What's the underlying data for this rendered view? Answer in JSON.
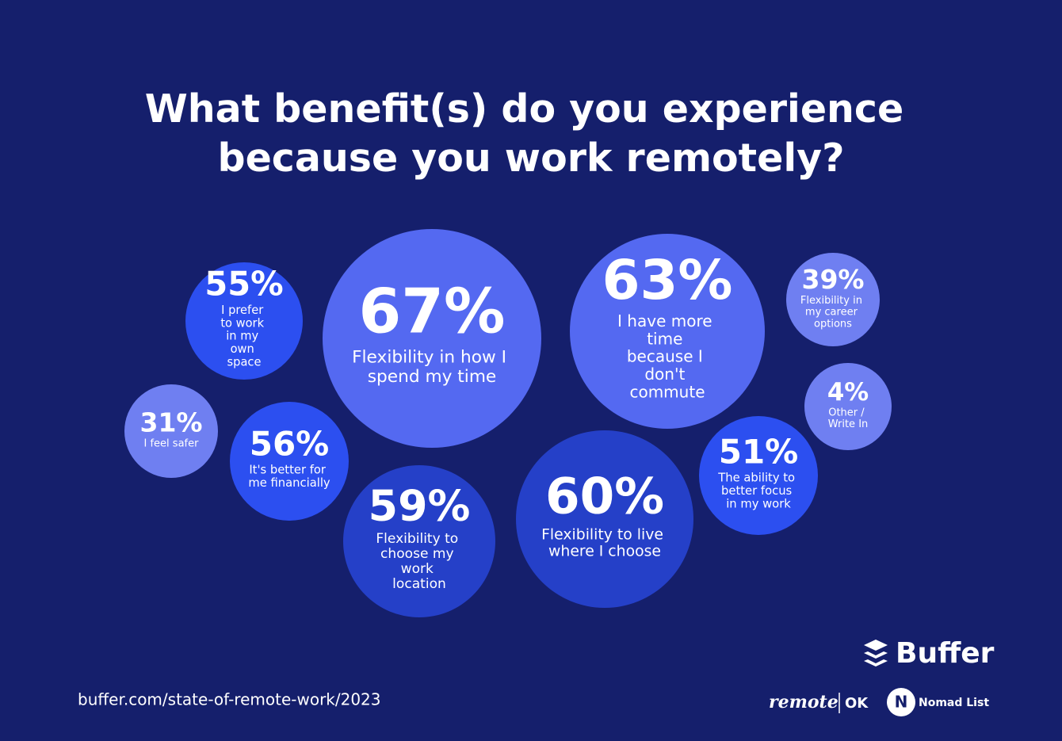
{
  "chart_data": {
    "type": "bubble",
    "title": "What benefit(s) do you experience because you work remotely?",
    "categories": [
      "I prefer to work in my own space",
      "Flexibility in how I spend my time",
      "I have more time because I don't commute",
      "Flexibility in my career options",
      "I feel safer",
      "It's better for me financially",
      "Flexibility to choose my work location",
      "Flexibility to live where I choose",
      "The ability to better focus in my work",
      "Other / Write In"
    ],
    "values": [
      55,
      67,
      63,
      39,
      31,
      56,
      59,
      60,
      51,
      4
    ],
    "value_labels": [
      "55%",
      "67%",
      "63%",
      "39%",
      "31%",
      "56%",
      "59%",
      "60%",
      "51%",
      "4%"
    ],
    "colors": [
      "#2c4ff0",
      "#5469f1",
      "#5469f1",
      "#6f7ff1",
      "#6f7ff1",
      "#2c4ff0",
      "#2540c8",
      "#2540c8",
      "#2c4ff0",
      "#6f7ff1"
    ],
    "source": "buffer.com/state-of-remote-work/2023",
    "logos": [
      "Buffer",
      "remote",
      "OK",
      "Nomad List"
    ]
  }
}
